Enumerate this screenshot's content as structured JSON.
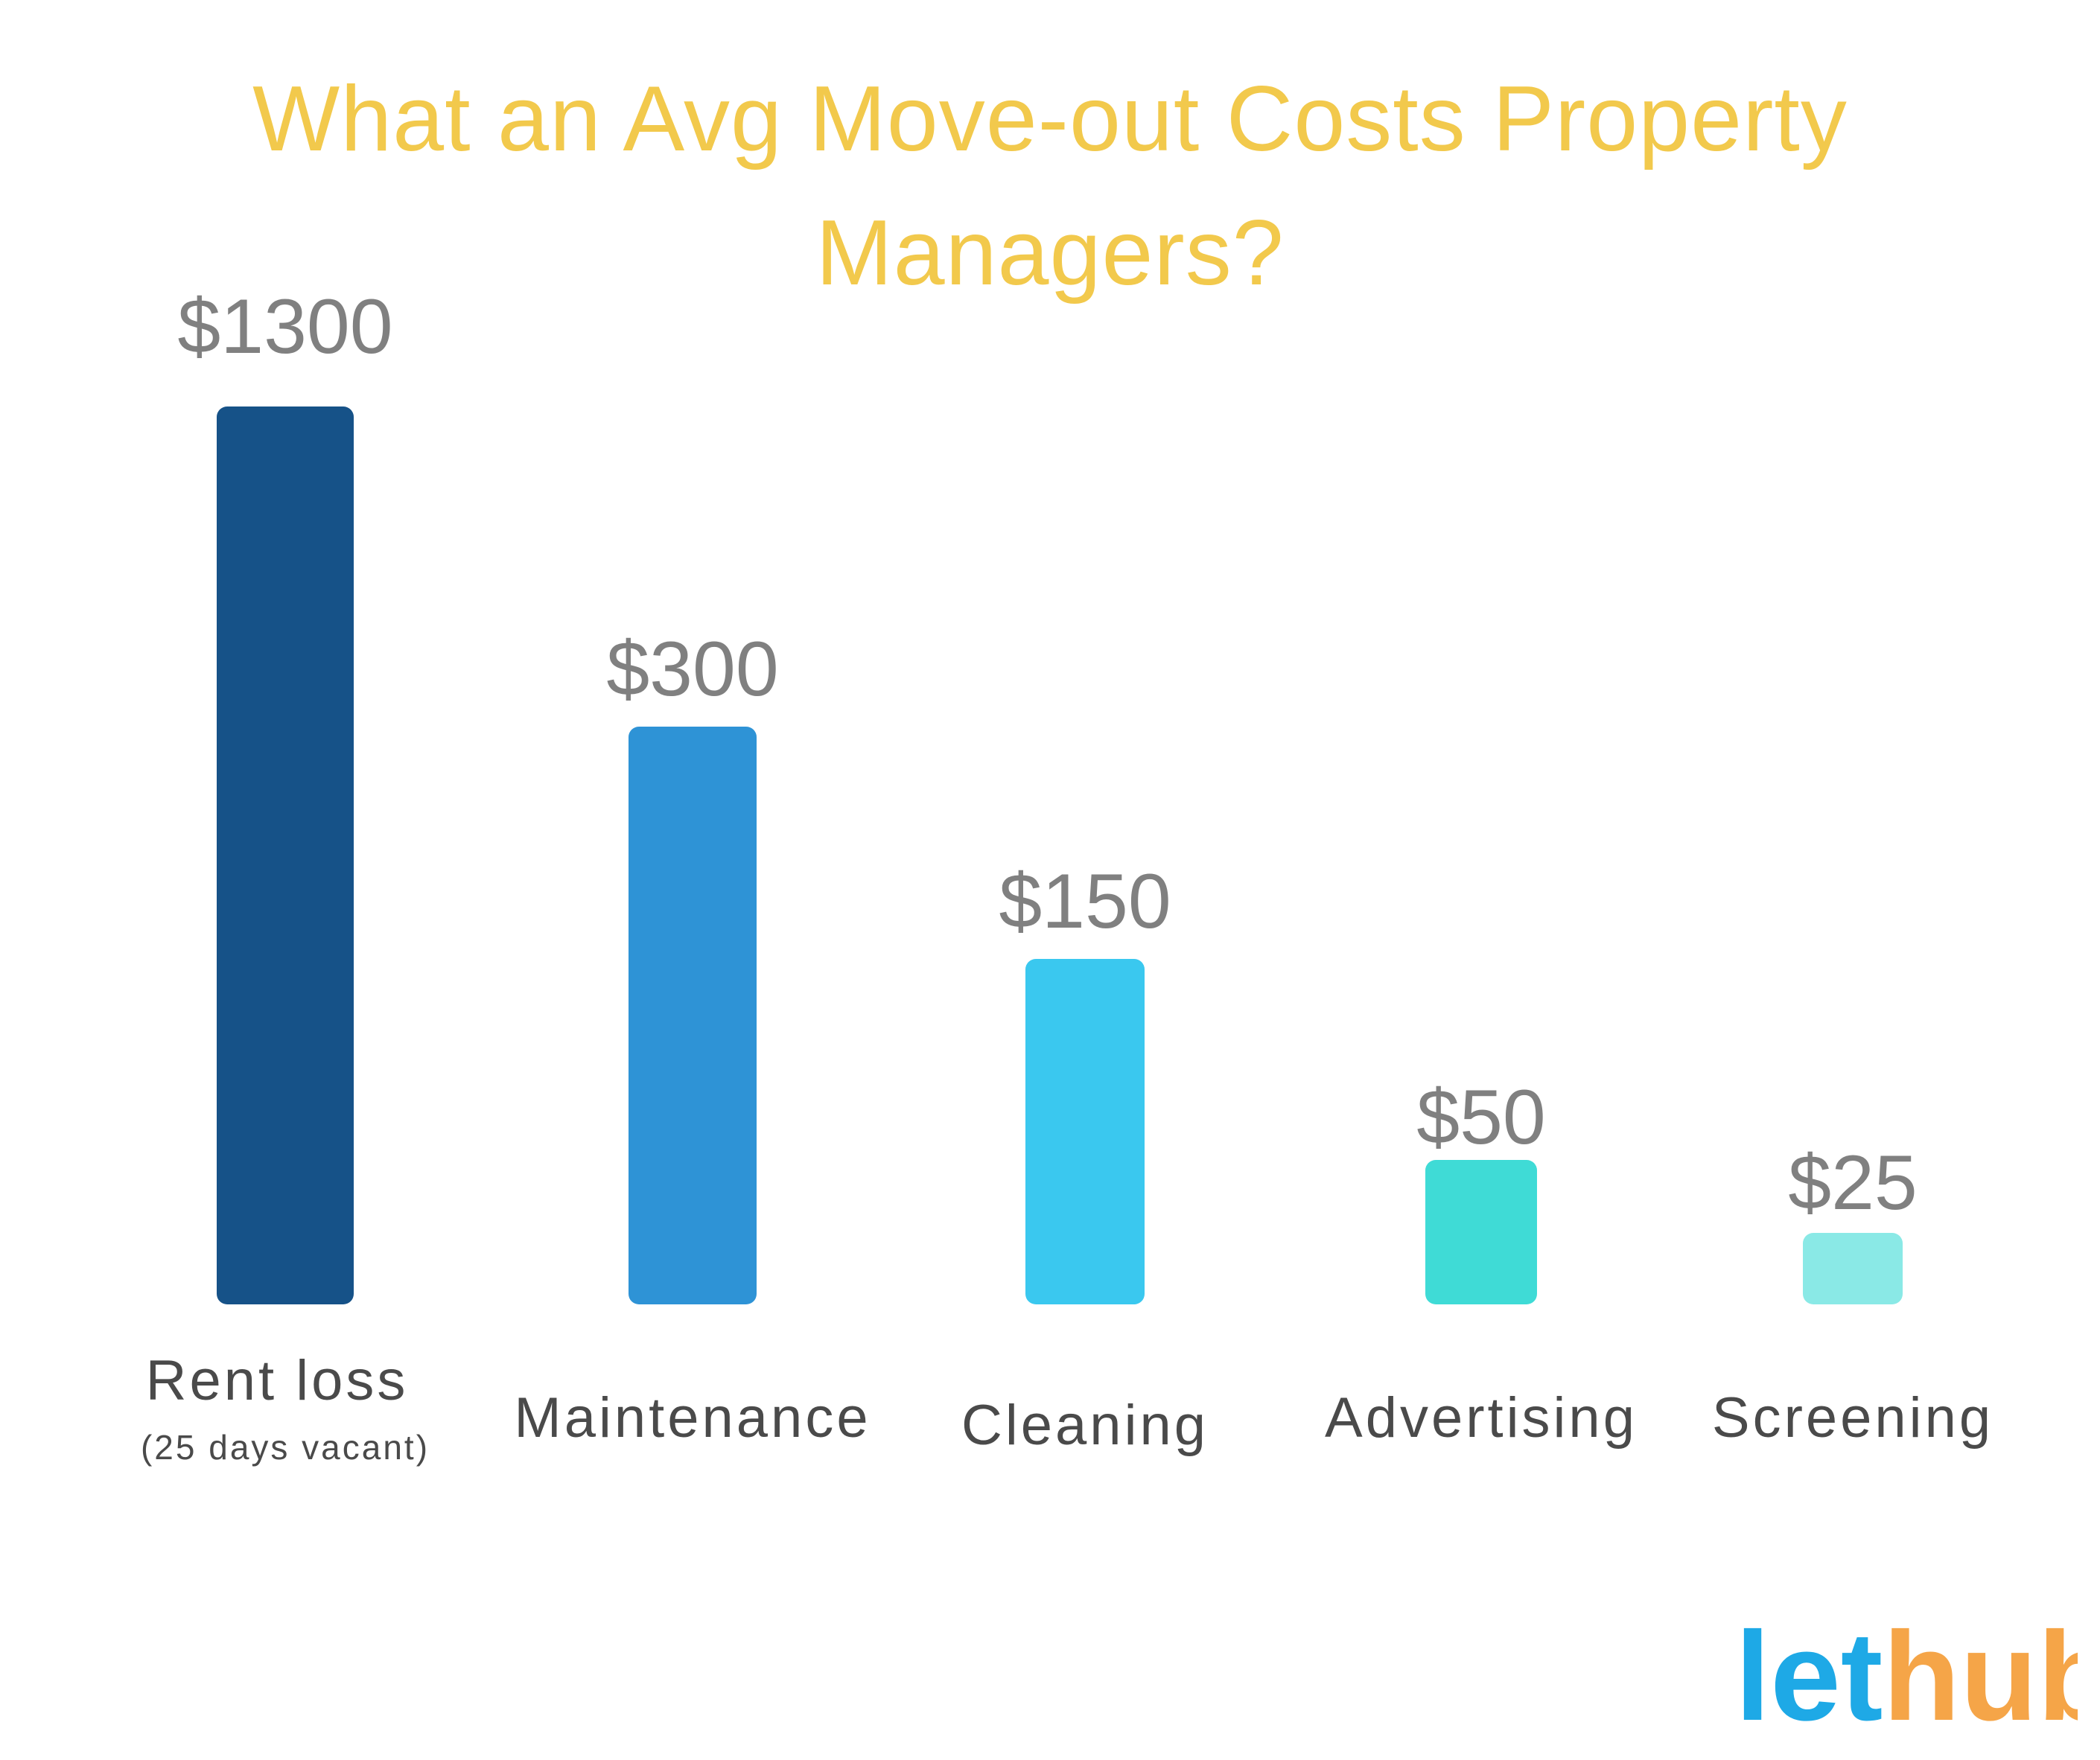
{
  "title": "What an Avg Move-out Costs Property Managers?",
  "chart_data": {
    "type": "bar",
    "categories": [
      "Rent loss",
      "Maintenance",
      "Cleaning",
      "Advertising",
      "Screening"
    ],
    "category_sublabels": [
      "(25 days vacant)",
      "",
      "",
      "",
      ""
    ],
    "values": [
      1300,
      300,
      150,
      50,
      25
    ],
    "value_labels": [
      "$1300",
      "$300",
      "$150",
      "$50",
      "$25"
    ],
    "colors": [
      "#165288",
      "#2e93d6",
      "#3ac8ef",
      "#3fdbd6",
      "#8ae9e6"
    ],
    "xlabel": "",
    "ylabel": "",
    "grid": false,
    "legend": "none"
  },
  "logo": {
    "part1": "let",
    "part2": "hub",
    "color1": "#1ea9e6",
    "color2": "#f5a548"
  }
}
